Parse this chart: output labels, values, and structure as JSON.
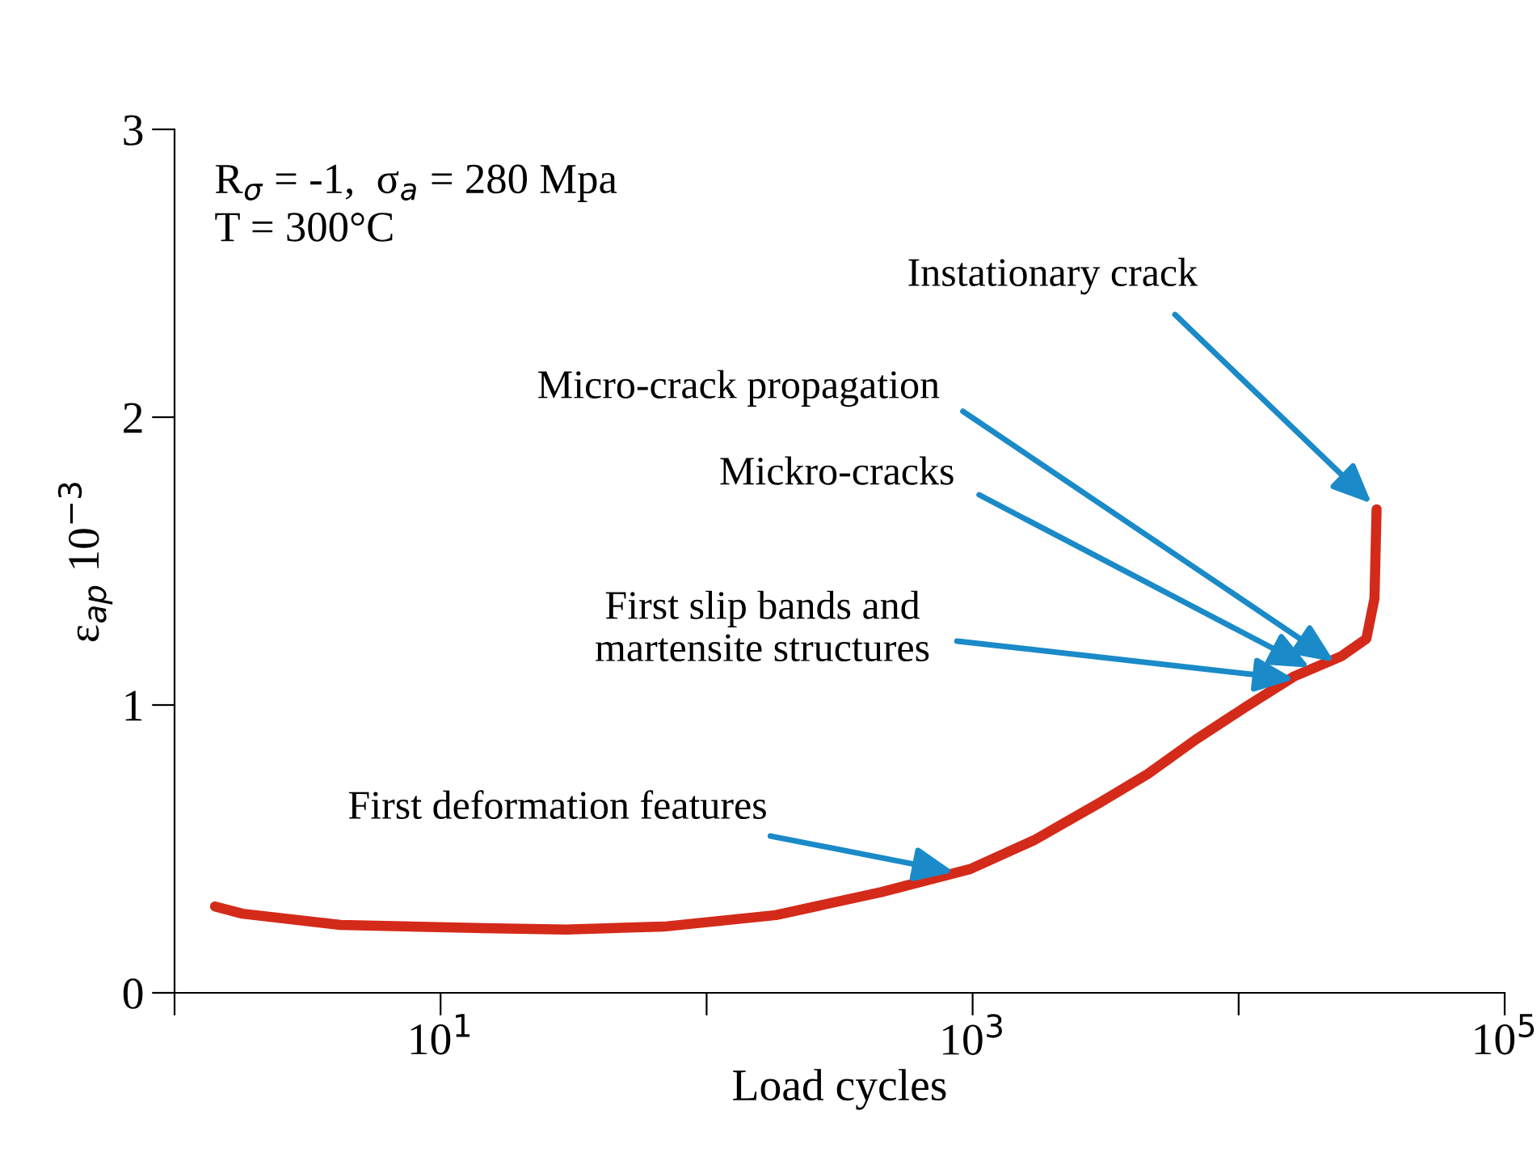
{
  "chart_data": {
    "type": "line",
    "xlabel": "Load cycles",
    "ylabel": "ε$_{ap}$ 10$^{−3}$",
    "log": "x",
    "xlim": [
      1,
      100000
    ],
    "ylim": [
      0,
      3
    ],
    "xticks": [
      {
        "value": 1,
        "label": null
      },
      {
        "value": 10,
        "label": "10$^{1}$"
      },
      {
        "value": 100,
        "label": null
      },
      {
        "value": 1000,
        "label": "10$^{3}$"
      },
      {
        "value": 10000,
        "label": null
      },
      {
        "value": 100000,
        "label": "10$^{5}$"
      }
    ],
    "yticks": [
      0,
      1,
      2,
      3
    ],
    "grid": false,
    "marker": "none",
    "line_style": "solid",
    "series": [
      {
        "color": "#d42a1a",
        "x": [
          1.42,
          1.8,
          4.2,
          14.6,
          29.6,
          69,
          182,
          454,
          980,
          1700,
          3000,
          4550,
          6900,
          10500,
          16200,
          24400,
          30200,
          32400,
          33000
        ],
        "values": [
          0.3,
          0.275,
          0.236,
          0.225,
          0.22,
          0.23,
          0.27,
          0.35,
          0.43,
          0.53,
          0.66,
          0.76,
          0.88,
          0.99,
          1.1,
          1.17,
          1.23,
          1.37,
          1.68
        ]
      }
    ],
    "annotations": [
      "R$_{σ}$ = -1,  σ$_{a}$ = 280 Mpa\nT = 300°C",
      {
        "text": "Instationary crack",
        "x": 31600,
        "y": 1.7
      },
      {
        "text": "Micro-crack propagation",
        "x": 22900,
        "y": 1.15
      },
      {
        "text": "Mickro-cracks",
        "x": 18500,
        "y": 1.13
      },
      {
        "text": "First slip bands and\nmartensite structures",
        "x": 16200,
        "y": 1.09
      },
      {
        "text": "First deformation features",
        "x": 850,
        "y": 0.42
      }
    ]
  }
}
